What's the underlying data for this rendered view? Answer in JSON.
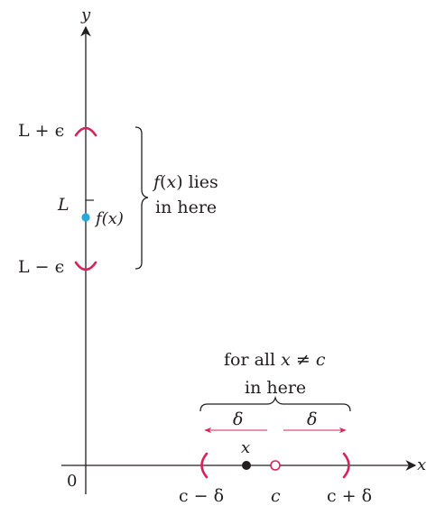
{
  "axes": {
    "x_label": "x",
    "y_label": "y",
    "origin_label": "0"
  },
  "y_axis_labels": {
    "upper": "L + ϵ",
    "middle": "L",
    "lower": "L − ϵ"
  },
  "function_label": "f(x)",
  "right_brace_label": {
    "line1": "f(x) lies",
    "line2": "in here"
  },
  "top_brace_label": {
    "line1": "for all x ≠ c",
    "line2": "in here"
  },
  "delta_labels": {
    "left": "δ",
    "right": "δ"
  },
  "x_axis_labels": {
    "left": "c − δ",
    "center": "c",
    "right": "c + δ",
    "point": "x"
  },
  "colors": {
    "ink": "#231f20",
    "interval_marks": "#d6245a",
    "delta_arrows": "#d6245a",
    "point_fill": "#29a8e0",
    "x_point": "#231f20"
  }
}
